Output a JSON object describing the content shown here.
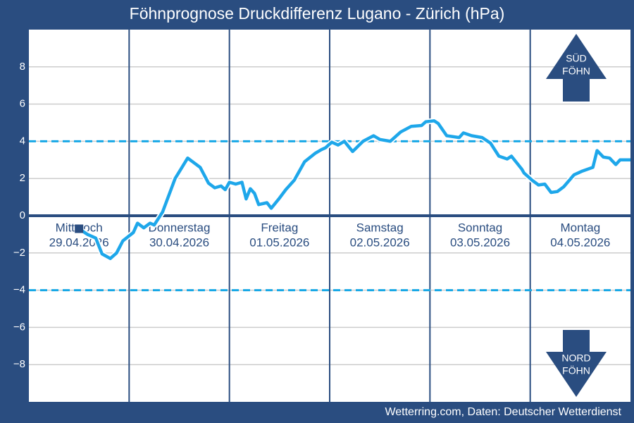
{
  "chart_data": {
    "type": "line",
    "title": "Föhnprognose Druckdifferenz Lugano - Zürich (hPa)",
    "footer": "Wetterring.com, Daten: Deutscher Wetterdienst",
    "xlim": [
      0,
      144
    ],
    "xticks": [
      24,
      48,
      72,
      96,
      120
    ],
    "ylim": [
      -10,
      10
    ],
    "yticks": [
      {
        "value": -8,
        "label": "−8"
      },
      {
        "value": -6,
        "label": "−6"
      },
      {
        "value": -4,
        "label": "−4"
      },
      {
        "value": -2,
        "label": "−2"
      },
      0,
      2,
      4,
      6,
      8
    ],
    "grid": true,
    "thresholds": [
      4,
      -4
    ],
    "days": [
      {
        "name": "Mittwoch",
        "date": "29.04.2026"
      },
      {
        "name": "Donnerstag",
        "date": "30.04.2026"
      },
      {
        "name": "Freitag",
        "date": "01.05.2026"
      },
      {
        "name": "Samstag",
        "date": "02.05.2026"
      },
      {
        "name": "Sonntag",
        "date": "03.05.2026"
      },
      {
        "name": "Montag",
        "date": "04.05.2026"
      }
    ],
    "upper_arrow": [
      "SÜD",
      "FÖHN"
    ],
    "lower_arrow": [
      "NORD",
      "FÖHN"
    ],
    "series": [
      {
        "color": "#1ea7ea",
        "x": [
          12,
          14,
          16,
          17.5,
          19.5,
          21,
          22.5,
          25,
          26,
          27.5,
          29,
          30,
          32,
          35,
          38,
          41,
          43,
          44.5,
          46,
          47,
          48,
          49.5,
          51,
          52,
          53,
          54,
          55,
          57,
          58,
          60,
          61.5,
          63.5,
          66,
          68.5,
          70,
          71,
          72.5,
          74,
          75.5,
          77.5,
          80,
          82.5,
          84,
          86.5,
          89,
          91.5,
          94,
          95,
          97,
          98,
          100,
          103,
          104,
          106,
          108.5,
          110.5,
          112.5,
          114.5,
          115.5,
          118,
          118.5,
          120.5,
          122,
          123.5,
          125,
          126.5,
          128,
          130.5,
          132.5,
          135,
          136,
          137.5,
          139,
          140.5,
          141.5,
          144
        ],
        "values": [
          -0.7,
          -1.0,
          -1.2,
          -2.05,
          -2.3,
          -2.0,
          -1.35,
          -0.9,
          -0.4,
          -0.65,
          -0.4,
          -0.5,
          0.2,
          2.0,
          3.1,
          2.6,
          1.75,
          1.5,
          1.6,
          1.4,
          1.8,
          1.7,
          1.8,
          0.9,
          1.45,
          1.2,
          0.6,
          0.7,
          0.4,
          0.95,
          1.4,
          1.9,
          2.9,
          3.35,
          3.55,
          3.65,
          3.95,
          3.8,
          4.0,
          3.45,
          4.0,
          4.3,
          4.1,
          4.0,
          4.5,
          4.8,
          4.85,
          5.05,
          5.1,
          4.95,
          4.3,
          4.2,
          4.45,
          4.3,
          4.2,
          3.9,
          3.2,
          3.05,
          3.2,
          2.5,
          2.3,
          1.9,
          1.65,
          1.7,
          1.25,
          1.3,
          1.55,
          2.2,
          2.4,
          2.6,
          3.5,
          3.15,
          3.1,
          2.75,
          3.0,
          3.0
        ]
      }
    ]
  }
}
